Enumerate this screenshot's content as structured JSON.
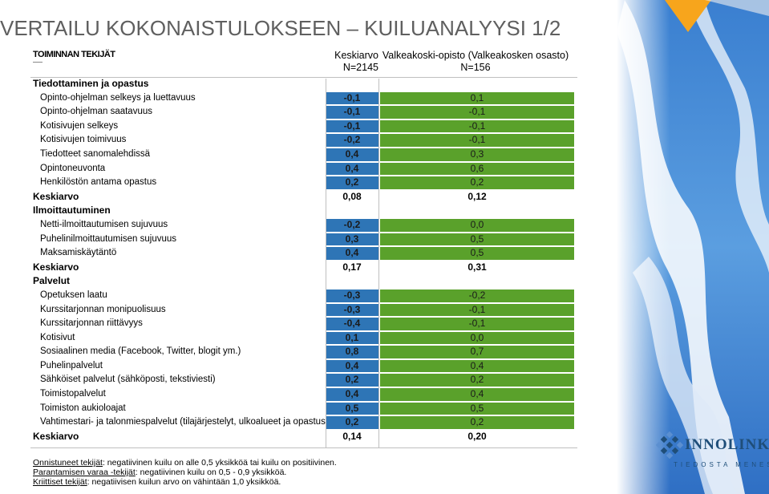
{
  "title": "VERTAILU KOKONAISTULOKSEEN – KUILUANALYYSI 1/2",
  "header": {
    "factors_label": "TOIMINNAN TEKIJÄT",
    "col1_line1": "Keskiarvo",
    "col1_line2": "N=2145",
    "col2_line1": "Valkeakoski-opisto (Valkeakosken osasto)",
    "col2_line2": "N=156"
  },
  "rows": [
    {
      "type": "section",
      "label": "Tiedottaminen ja opastus",
      "v1": "",
      "v2": ""
    },
    {
      "type": "item",
      "label": "Opinto-ohjelman selkeys ja luettavuus",
      "v1": "-0,1",
      "v2": "0,1"
    },
    {
      "type": "item",
      "label": "Opinto-ohjelman saatavuus",
      "v1": "-0,1",
      "v2": "-0,1"
    },
    {
      "type": "item",
      "label": "Kotisivujen selkeys",
      "v1": "-0,1",
      "v2": "-0,1"
    },
    {
      "type": "item",
      "label": "Kotisivujen toimivuus",
      "v1": "-0,2",
      "v2": "-0,1"
    },
    {
      "type": "item",
      "label": "Tiedotteet sanomalehdissä",
      "v1": "0,4",
      "v2": "0,3"
    },
    {
      "type": "item",
      "label": "Opintoneuvonta",
      "v1": "0,4",
      "v2": "0,6"
    },
    {
      "type": "item",
      "label": "Henkilöstön antama opastus",
      "v1": "0,2",
      "v2": "0,2"
    },
    {
      "type": "avg",
      "label": "Keskiarvo",
      "v1": "0,08",
      "v2": "0,12"
    },
    {
      "type": "section",
      "label": "Ilmoittautuminen",
      "v1": "",
      "v2": ""
    },
    {
      "type": "item",
      "label": "Netti-ilmoittautumisen sujuvuus",
      "v1": "-0,2",
      "v2": "0,0"
    },
    {
      "type": "item",
      "label": "Puhelinilmoittautumisen sujuvuus",
      "v1": "0,3",
      "v2": "0,5"
    },
    {
      "type": "item",
      "label": "Maksamiskäytäntö",
      "v1": "0,4",
      "v2": "0,5"
    },
    {
      "type": "avg",
      "label": "Keskiarvo",
      "v1": "0,17",
      "v2": "0,31"
    },
    {
      "type": "section",
      "label": "Palvelut",
      "v1": "",
      "v2": ""
    },
    {
      "type": "item",
      "label": "Opetuksen laatu",
      "v1": "-0,3",
      "v2": "-0,2"
    },
    {
      "type": "item",
      "label": "Kurssitarjonnan monipuolisuus",
      "v1": "-0,3",
      "v2": "-0,1"
    },
    {
      "type": "item",
      "label": "Kurssitarjonnan riittävyys",
      "v1": "-0,4",
      "v2": "-0,1"
    },
    {
      "type": "item",
      "label": "Kotisivut",
      "v1": "0,1",
      "v2": "0,0"
    },
    {
      "type": "item",
      "label": "Sosiaalinen media (Facebook, Twitter, blogit ym.)",
      "v1": "0,8",
      "v2": "0,7"
    },
    {
      "type": "item",
      "label": "Puhelinpalvelut",
      "v1": "0,4",
      "v2": "0,4"
    },
    {
      "type": "item",
      "label": "Sähköiset palvelut (sähköposti, tekstiviesti)",
      "v1": "0,2",
      "v2": "0,2"
    },
    {
      "type": "item",
      "label": "Toimistopalvelut",
      "v1": "0,4",
      "v2": "0,4"
    },
    {
      "type": "item",
      "label": "Toimiston aukioloajat",
      "v1": "0,5",
      "v2": "0,5"
    },
    {
      "type": "item",
      "label": "Vahtimestari- ja talonmiespalvelut (tilajärjestelyt, ulkoalueet ja opastus)",
      "v1": "0,2",
      "v2": "0,2"
    },
    {
      "type": "avg",
      "label": "Keskiarvo",
      "v1": "0,14",
      "v2": "0,20"
    }
  ],
  "legend": [
    {
      "term": "Onnistuneet tekijät",
      "text": ": negatiivinen kuilu on alle 0,5 yksikköä tai kuilu on positiivinen."
    },
    {
      "term": "Parantamisen varaa -tekijät",
      "text": ": negatiivinen kuilu on 0,5 - 0,9 yksikköä."
    },
    {
      "term": "Kriittiset tekijät",
      "text": ": negatiivisen kuilun arvo on vähintään 1,0 yksikköä."
    }
  ],
  "logo": {
    "name": "INNOLINK",
    "tagline": "TIEDOSTA MENESTYS"
  },
  "colors": {
    "col1_fill": "#2e75b6",
    "col2_fill": "#5aa12b",
    "title": "#5f5f5f",
    "accent": "#f7a51c"
  }
}
